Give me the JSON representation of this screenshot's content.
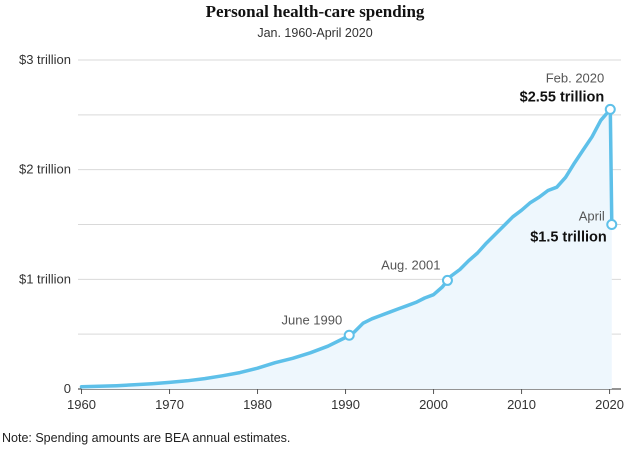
{
  "header": {
    "title": "Personal health-care spending",
    "subtitle": "Jan. 1960-April 2020"
  },
  "note": "Note: Spending amounts are BEA annual estimates.",
  "chart_data": {
    "type": "area",
    "title": "Personal health-care spending",
    "subtitle": "Jan. 1960-April 2020",
    "xlabel": "",
    "ylabel": "",
    "unit": "trillion dollars",
    "xlim": [
      1959.6,
      2021.3
    ],
    "ylim": [
      0,
      3
    ],
    "grid": true,
    "y_ticks": [
      {
        "value": 0,
        "label": "0"
      },
      {
        "value": 1,
        "label": "$1 trillion"
      },
      {
        "value": 2,
        "label": "$2 trillion"
      },
      {
        "value": 3,
        "label": "$3 trillion"
      }
    ],
    "x_ticks": [
      {
        "value": 1960,
        "label": "1960"
      },
      {
        "value": 1970,
        "label": "1970"
      },
      {
        "value": 1980,
        "label": "1980"
      },
      {
        "value": 1990,
        "label": "1990"
      },
      {
        "value": 2000,
        "label": "2000"
      },
      {
        "value": 2010,
        "label": "2010"
      },
      {
        "value": 2020,
        "label": "2020"
      }
    ],
    "series": [
      {
        "color": "#5ec0e9",
        "fill": "#eef7fd",
        "points": [
          [
            1960,
            0.02
          ],
          [
            1962,
            0.025
          ],
          [
            1964,
            0.03
          ],
          [
            1966,
            0.038
          ],
          [
            1968,
            0.048
          ],
          [
            1970,
            0.06
          ],
          [
            1972,
            0.075
          ],
          [
            1974,
            0.095
          ],
          [
            1976,
            0.12
          ],
          [
            1978,
            0.15
          ],
          [
            1980,
            0.19
          ],
          [
            1982,
            0.24
          ],
          [
            1984,
            0.28
          ],
          [
            1986,
            0.33
          ],
          [
            1988,
            0.39
          ],
          [
            1990,
            0.47
          ],
          [
            1991,
            0.52
          ],
          [
            1992,
            0.6
          ],
          [
            1993,
            0.64
          ],
          [
            1994,
            0.67
          ],
          [
            1995,
            0.7
          ],
          [
            1996,
            0.73
          ],
          [
            1997,
            0.76
          ],
          [
            1998,
            0.79
          ],
          [
            1999,
            0.83
          ],
          [
            2000,
            0.86
          ],
          [
            2001,
            0.93
          ],
          [
            2001.58,
            0.99
          ],
          [
            2002,
            1.03
          ],
          [
            2003,
            1.09
          ],
          [
            2004,
            1.17
          ],
          [
            2005,
            1.24
          ],
          [
            2006,
            1.33
          ],
          [
            2007,
            1.41
          ],
          [
            2008,
            1.49
          ],
          [
            2009,
            1.57
          ],
          [
            2010,
            1.63
          ],
          [
            2011,
            1.7
          ],
          [
            2012,
            1.75
          ],
          [
            2013,
            1.81
          ],
          [
            2014,
            1.84
          ],
          [
            2015,
            1.93
          ],
          [
            2016,
            2.06
          ],
          [
            2017,
            2.18
          ],
          [
            2018,
            2.3
          ],
          [
            2019,
            2.45
          ],
          [
            2020.08,
            2.55
          ],
          [
            2020.25,
            1.5
          ]
        ]
      }
    ],
    "annotations": [
      {
        "x": 1990.42,
        "y": 0.49,
        "label": "June 1990"
      },
      {
        "x": 2001.58,
        "y": 0.99,
        "label": "Aug. 2001"
      },
      {
        "x": 2020.08,
        "y": 2.55,
        "label": "Feb. 2020",
        "value_label": "$2.55 trillion"
      },
      {
        "x": 2020.25,
        "y": 1.5,
        "label": "April",
        "value_label": "$1.5 trillion"
      }
    ]
  }
}
